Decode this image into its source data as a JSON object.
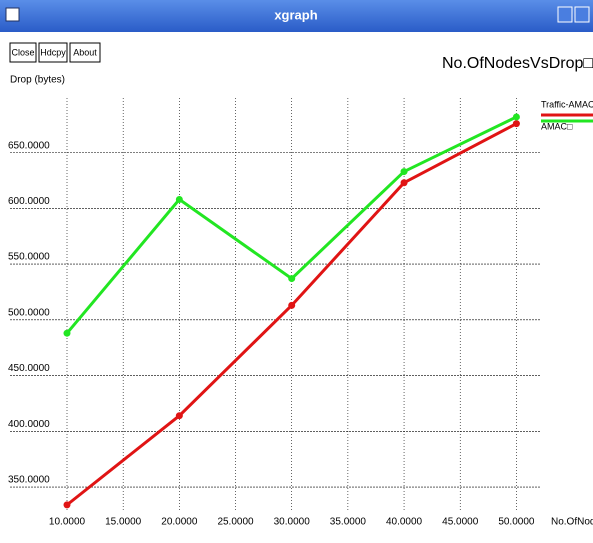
{
  "window": {
    "title": "xgraph",
    "buttons": [
      "Close",
      "Hdcpy",
      "About"
    ]
  },
  "chart_data": {
    "type": "line",
    "title": "No.OfNodesVsDrop□",
    "y_label": "Drop (bytes)",
    "x_label": "No.OfNodes",
    "x": [
      10,
      20,
      30,
      40,
      50
    ],
    "series": [
      {
        "name": "Traffic-AMAC□",
        "color": "#e01414",
        "values": [
          334,
          414,
          513,
          623,
          676
        ]
      },
      {
        "name": "AMAC□",
        "color": "#22e622",
        "values": [
          488,
          608,
          537,
          633,
          682
        ]
      }
    ],
    "xlim": [
      10,
      52.1
    ],
    "ylim": [
      329.4,
      699
    ],
    "xticks": [
      {
        "value": 10,
        "label": "10.0000"
      },
      {
        "value": 15,
        "label": "15.0000"
      },
      {
        "value": 20,
        "label": "20.0000"
      },
      {
        "value": 25,
        "label": "25.0000"
      },
      {
        "value": 30,
        "label": "30.0000"
      },
      {
        "value": 35,
        "label": "35.0000"
      },
      {
        "value": 40,
        "label": "40.0000"
      },
      {
        "value": 45,
        "label": "45.0000"
      },
      {
        "value": 50,
        "label": "50.0000"
      }
    ],
    "yticks": [
      {
        "value": 350,
        "label": "350.0000"
      },
      {
        "value": 400,
        "label": "400.0000"
      },
      {
        "value": 450,
        "label": "450.0000"
      },
      {
        "value": 500,
        "label": "500.0000"
      },
      {
        "value": 550,
        "label": "550.0000"
      },
      {
        "value": 600,
        "label": "600.0000"
      },
      {
        "value": 650,
        "label": "650.0000"
      }
    ],
    "grid": true
  }
}
